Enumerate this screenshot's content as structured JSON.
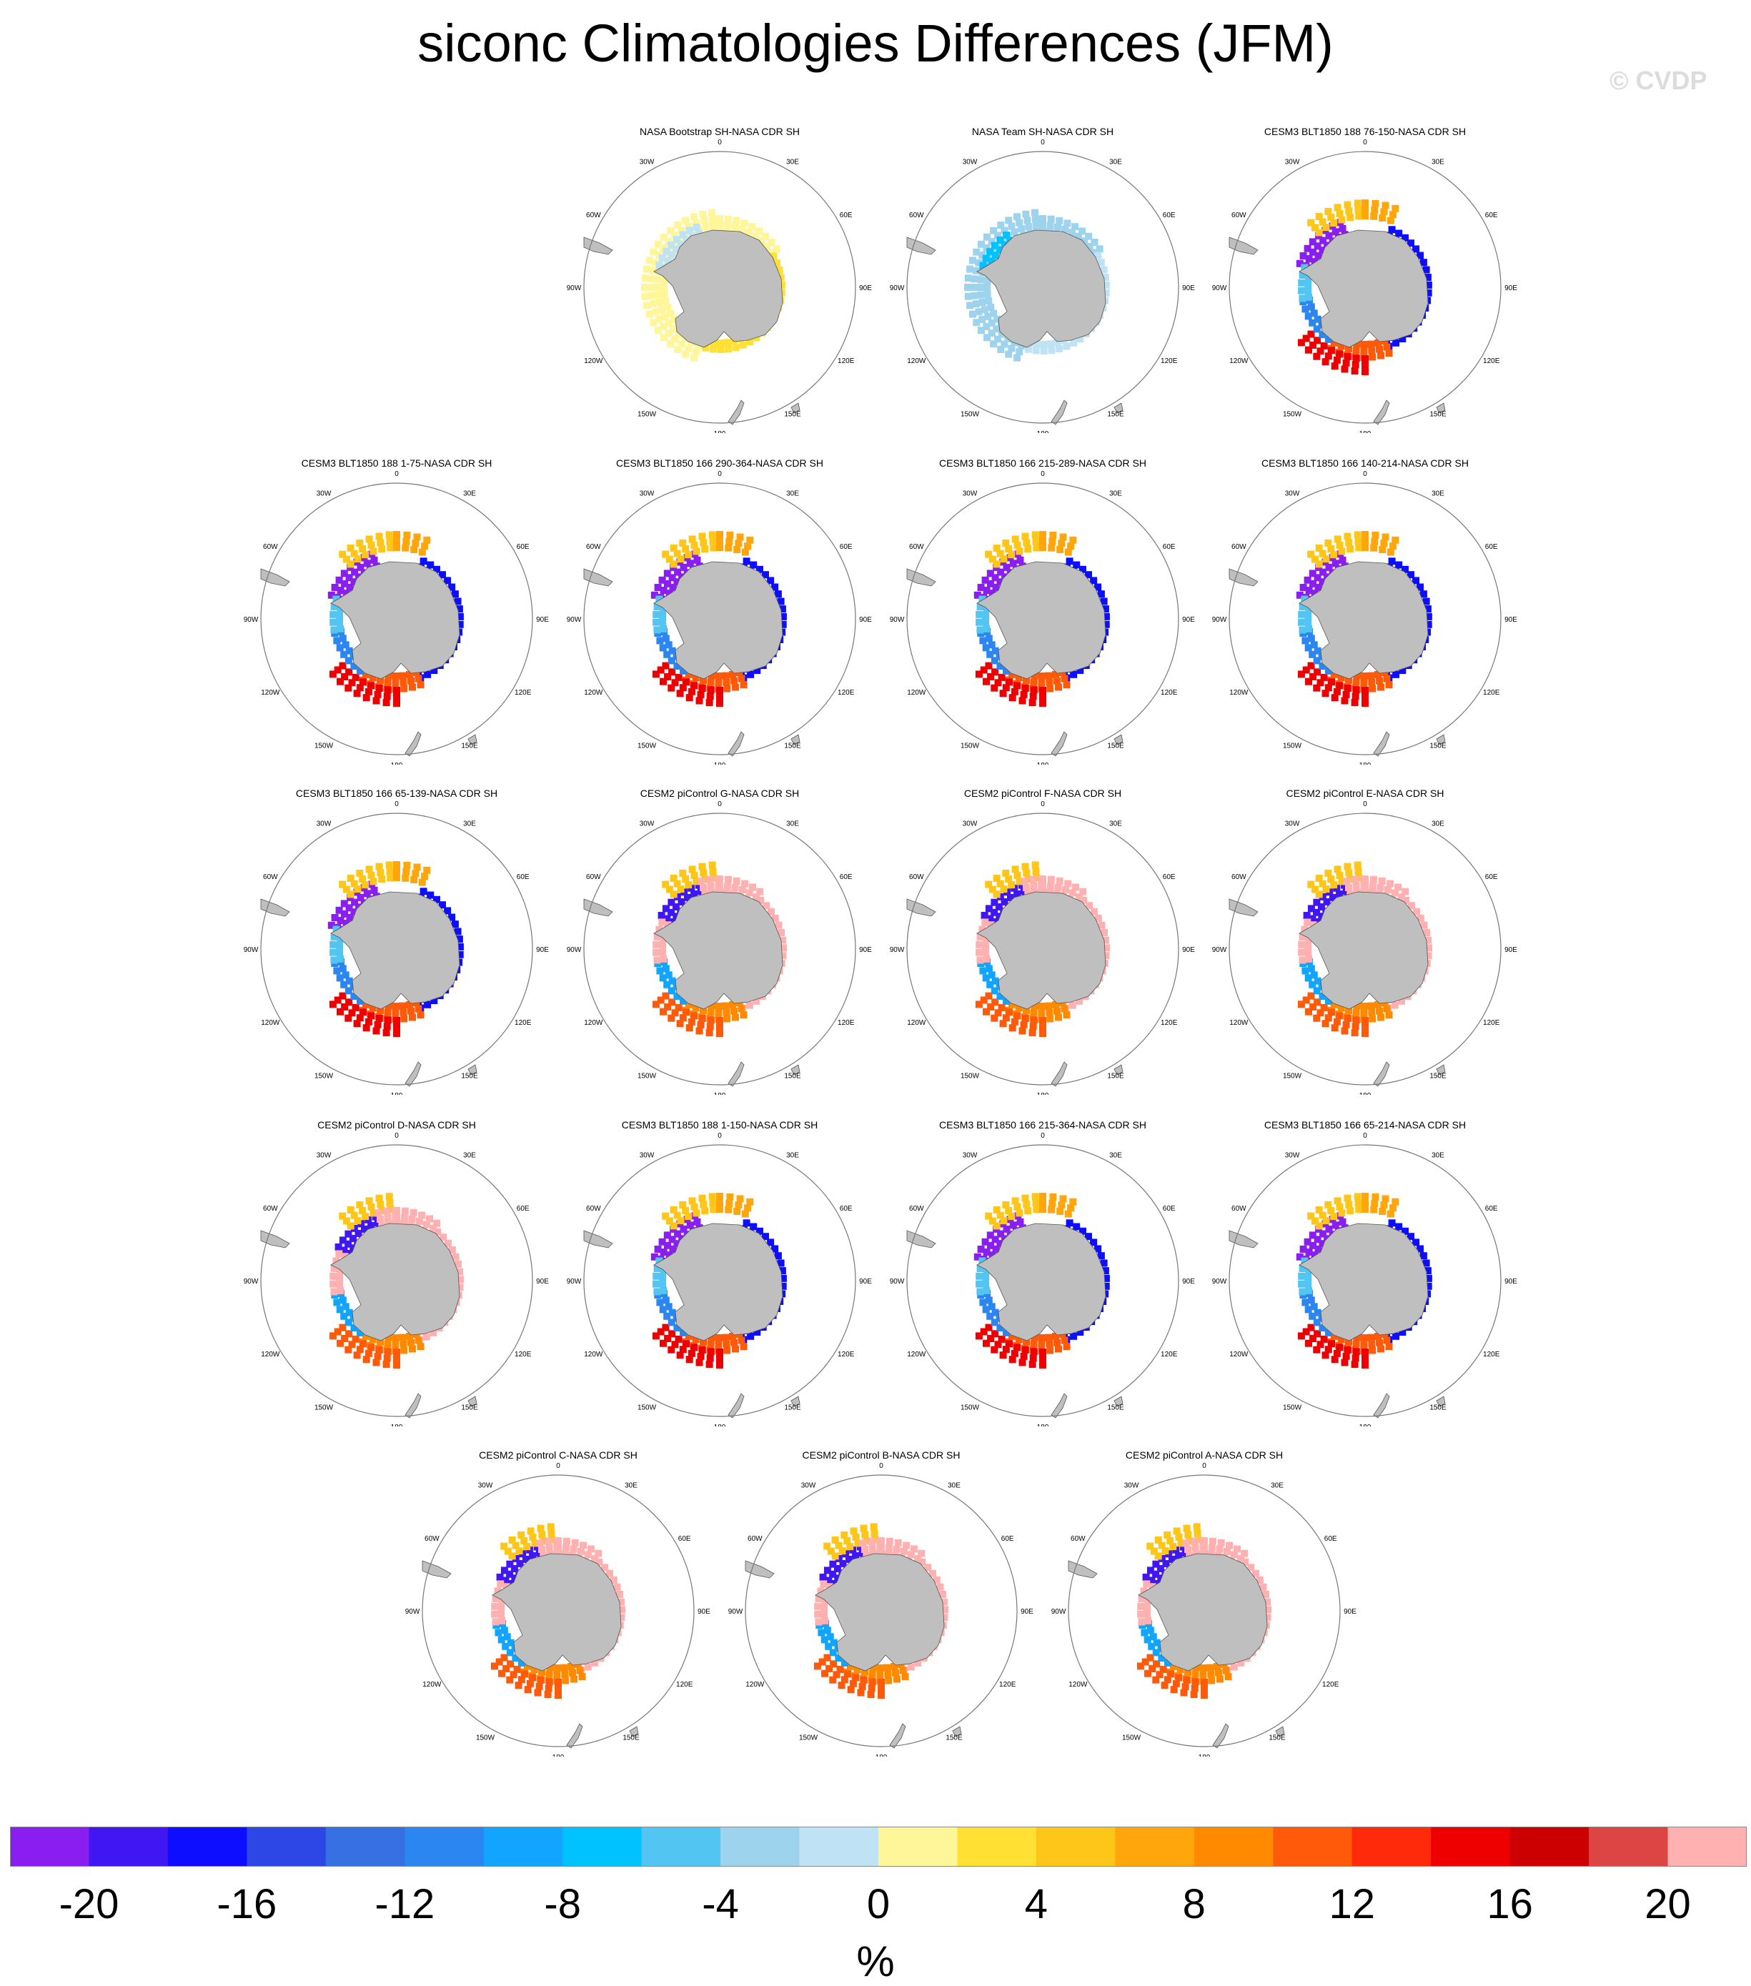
{
  "title": "siconc Climatologies Differences (JFM)",
  "watermark": "© CVDP",
  "panels": [
    {
      "title": "NASA Bootstrap SH-NASA CDR SH",
      "pattern": "bootstrap"
    },
    {
      "title": "NASA Team SH-NASA CDR SH",
      "pattern": "team"
    },
    {
      "title": "CESM3 BLT1850 188 76-150-NASA CDR SH",
      "pattern": "model"
    },
    {
      "title": "CESM3 BLT1850 188 1-75-NASA CDR SH",
      "pattern": "model"
    },
    {
      "title": "CESM3 BLT1850 166 290-364-NASA CDR SH",
      "pattern": "model"
    },
    {
      "title": "CESM3 BLT1850 166 215-289-NASA CDR SH",
      "pattern": "model"
    },
    {
      "title": "CESM3 BLT1850 166 140-214-NASA CDR SH",
      "pattern": "model"
    },
    {
      "title": "CESM3 BLT1850 166 65-139-NASA CDR SH",
      "pattern": "model"
    },
    {
      "title": "CESM2 piControl G-NASA CDR SH",
      "pattern": "cesm2"
    },
    {
      "title": "CESM2 piControl F-NASA CDR SH",
      "pattern": "cesm2"
    },
    {
      "title": "CESM2 piControl E-NASA CDR SH",
      "pattern": "cesm2"
    },
    {
      "title": "CESM2 piControl D-NASA CDR SH",
      "pattern": "cesm2"
    },
    {
      "title": "CESM3 BLT1850 188 1-150-NASA CDR SH",
      "pattern": "model"
    },
    {
      "title": "CESM3 BLT1850 166 215-364-NASA CDR SH",
      "pattern": "model"
    },
    {
      "title": "CESM3 BLT1850 166 65-214-NASA CDR SH",
      "pattern": "model"
    },
    {
      "title": "CESM2 piControl C-NASA CDR SH",
      "pattern": "cesm2"
    },
    {
      "title": "CESM2 piControl B-NASA CDR SH",
      "pattern": "cesm2"
    },
    {
      "title": "CESM2 piControl A-NASA CDR SH",
      "pattern": "cesm2"
    }
  ],
  "lon_labels": [
    "0",
    "30E",
    "60E",
    "90E",
    "120E",
    "150E",
    "180",
    "150W",
    "120W",
    "90W",
    "60W",
    "30W"
  ],
  "colorbar": {
    "unit": "%",
    "tick_labels": [
      "-20",
      "-16",
      "-12",
      "-8",
      "-4",
      "0",
      "4",
      "8",
      "12",
      "16",
      "20"
    ],
    "colors": [
      "#8a1df0",
      "#4016f2",
      "#0d0dff",
      "#2d46e6",
      "#3770e3",
      "#2b86f2",
      "#12a5ff",
      "#00c2ff",
      "#52c5f2",
      "#9ed3ee",
      "#bfe3f5",
      "#fff599",
      "#ffe033",
      "#ffc61a",
      "#ffa60d",
      "#ff8a00",
      "#ff5a0a",
      "#ff2a0a",
      "#ee0000",
      "#cc0000",
      "#dd4444",
      "#ffb0b0"
    ]
  },
  "land_color": "#bfbfbf"
}
